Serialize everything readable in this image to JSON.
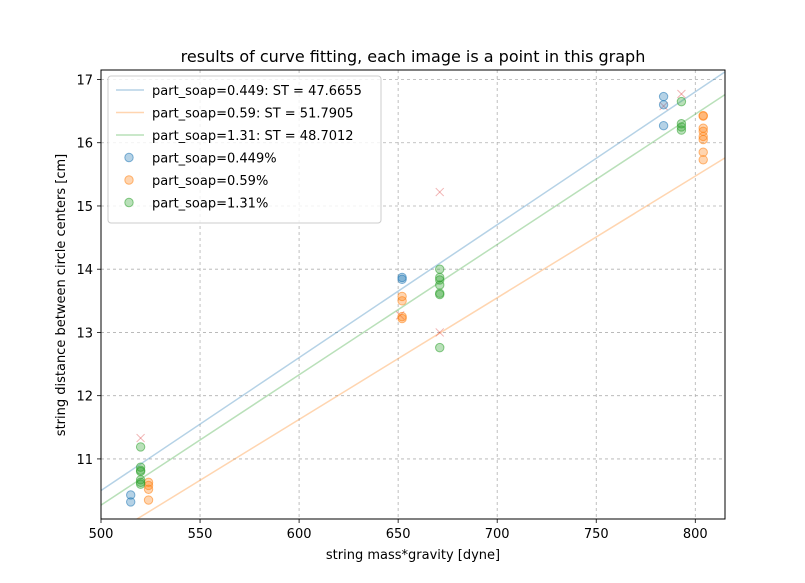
{
  "chart_data": {
    "type": "scatter",
    "title": "results of curve fitting, each image is a point in this graph",
    "xlabel": "string mass*gravity [dyne]",
    "ylabel": "string distance between circle centers [cm]",
    "xlim": [
      500,
      815
    ],
    "ylim": [
      10.05,
      17.15
    ],
    "xticks": [
      "500",
      "550",
      "600",
      "650",
      "700",
      "750",
      "800"
    ],
    "yticks": [
      "11",
      "12",
      "13",
      "14",
      "15",
      "16",
      "17"
    ],
    "grid": true,
    "legend_position": "top-left",
    "lines": [
      {
        "name": "part_soap=0.449: ST = 47.6655",
        "color": "#1f77b4",
        "x": [
          500,
          815
        ],
        "y": [
          10.5,
          17.12
        ]
      },
      {
        "name": "part_soap=0.59: ST = 51.7905",
        "color": "#ff7f0e",
        "x": [
          500,
          815
        ],
        "y": [
          9.7,
          15.76
        ]
      },
      {
        "name": "part_soap=1.31: ST = 48.7012",
        "color": "#2ca02c",
        "x": [
          500,
          815
        ],
        "y": [
          10.27,
          16.76
        ]
      }
    ],
    "series": [
      {
        "name": "part_soap=0.449%",
        "color": "#1f77b4",
        "points": [
          [
            515,
            10.43
          ],
          [
            515,
            10.32
          ],
          [
            652,
            13.87
          ],
          [
            652,
            13.84
          ],
          [
            784,
            16.73
          ],
          [
            784,
            16.6
          ],
          [
            784,
            16.27
          ]
        ]
      },
      {
        "name": "part_soap=0.59%",
        "color": "#ff7f0e",
        "points": [
          [
            524,
            10.63
          ],
          [
            524,
            10.58
          ],
          [
            524,
            10.52
          ],
          [
            524,
            10.35
          ],
          [
            652,
            13.57
          ],
          [
            652,
            13.5
          ],
          [
            652,
            13.25
          ],
          [
            652,
            13.22
          ],
          [
            804,
            16.43
          ],
          [
            804,
            16.42
          ],
          [
            804,
            16.23
          ],
          [
            804,
            16.18
          ],
          [
            804,
            16.1
          ],
          [
            804,
            16.05
          ],
          [
            804,
            15.85
          ],
          [
            804,
            15.73
          ]
        ]
      },
      {
        "name": "part_soap=1.31%",
        "color": "#2ca02c",
        "points": [
          [
            520,
            11.19
          ],
          [
            520,
            10.87
          ],
          [
            520,
            10.82
          ],
          [
            520,
            10.8
          ],
          [
            520,
            10.67
          ],
          [
            520,
            10.63
          ],
          [
            520,
            10.6
          ],
          [
            671,
            14.0
          ],
          [
            671,
            13.87
          ],
          [
            671,
            13.83
          ],
          [
            671,
            13.75
          ],
          [
            671,
            13.62
          ],
          [
            671,
            13.6
          ],
          [
            671,
            12.76
          ],
          [
            793,
            16.65
          ],
          [
            793,
            16.3
          ],
          [
            793,
            16.25
          ],
          [
            793,
            16.2
          ]
        ]
      }
    ],
    "excluded_points_color": "#d62728",
    "excluded_points": [
      [
        520,
        11.33
      ],
      [
        651,
        13.27
      ],
      [
        671,
        15.22
      ],
      [
        671,
        13.0
      ],
      [
        784,
        16.58
      ],
      [
        793,
        16.77
      ]
    ]
  }
}
